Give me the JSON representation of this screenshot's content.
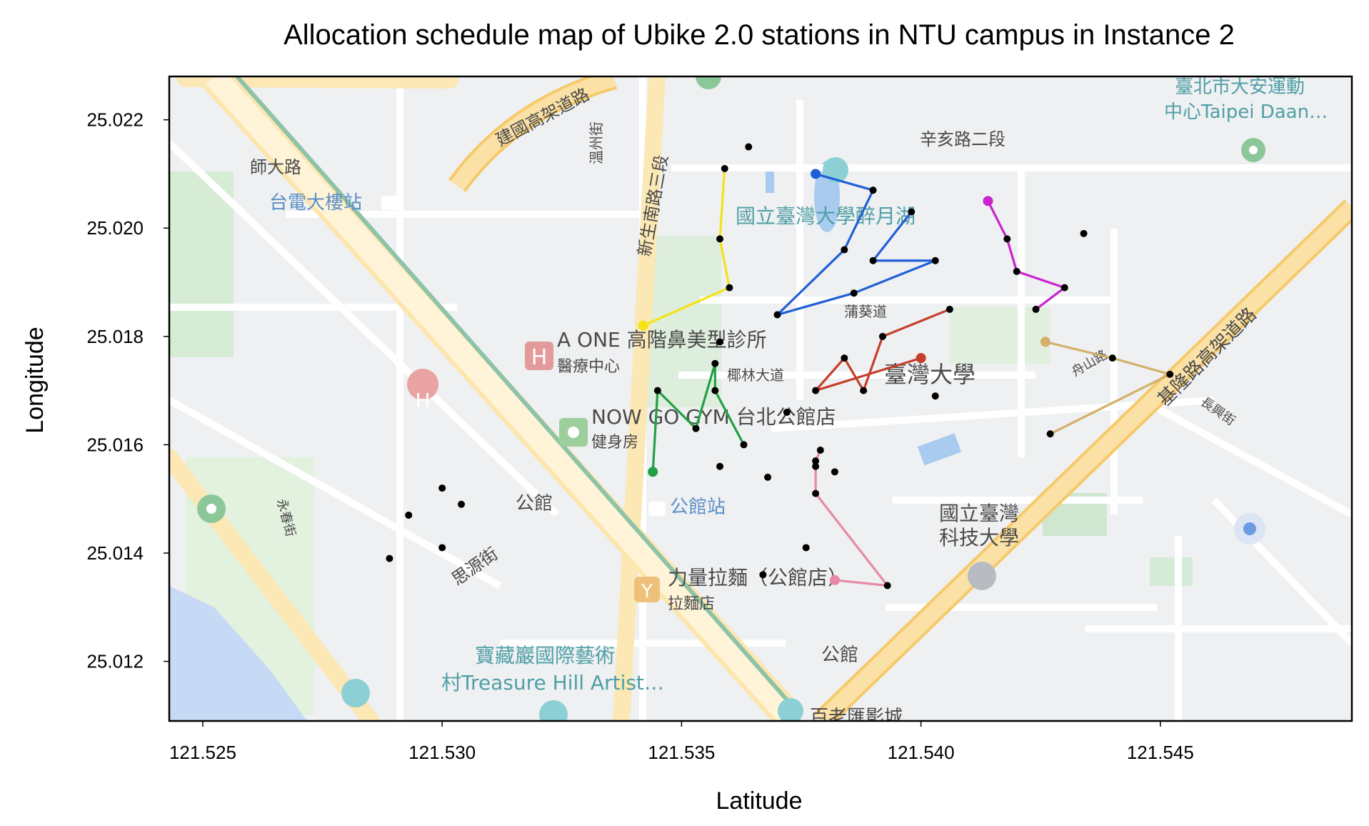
{
  "chart_data": {
    "type": "scatter",
    "title": "Allocation schedule map of Ubike 2.0 stations in NTU campus in Instance 2",
    "xlabel": "Latitude",
    "ylabel": "Longitude",
    "xlim": [
      121.5243,
      121.549
    ],
    "ylim": [
      25.0109,
      25.0228
    ],
    "x_ticks": [
      121.525,
      121.53,
      121.535,
      121.54,
      121.545
    ],
    "x_tick_labels": [
      "121.525",
      "121.530",
      "121.535",
      "121.540",
      "121.545"
    ],
    "y_ticks": [
      25.012,
      25.014,
      25.016,
      25.018,
      25.02,
      25.022
    ],
    "y_tick_labels": [
      "25.012",
      "25.014",
      "25.016",
      "25.018",
      "25.020",
      "25.022"
    ],
    "grid": false,
    "legend": false,
    "background": "map",
    "unvisited_stations": [
      [
        121.5364,
        25.0215
      ],
      [
        121.5434,
        25.0199
      ],
      [
        121.5358,
        25.0179
      ],
      [
        121.5403,
        25.0169
      ],
      [
        121.5372,
        25.0166
      ],
      [
        121.5358,
        25.0156
      ],
      [
        121.5368,
        25.0154
      ],
      [
        121.5382,
        25.0155
      ],
      [
        121.5378,
        25.0156
      ],
      [
        121.5376,
        25.0141
      ],
      [
        121.5367,
        25.0136
      ],
      [
        121.53,
        25.0152
      ],
      [
        121.5304,
        25.0149
      ],
      [
        121.5293,
        25.0147
      ],
      [
        121.53,
        25.0141
      ],
      [
        121.5289,
        25.0139
      ]
    ],
    "routes": [
      {
        "color": "#f5e216",
        "start": [
          121.5342,
          25.0182
        ],
        "points": [
          [
            121.5342,
            25.0182
          ],
          [
            121.536,
            25.0189
          ],
          [
            121.5358,
            25.0198
          ],
          [
            121.5359,
            25.0211
          ]
        ]
      },
      {
        "color": "#1f5fd6",
        "start": [
          121.5378,
          25.021
        ],
        "points": [
          [
            121.5378,
            25.021
          ],
          [
            121.539,
            25.0207
          ],
          [
            121.5384,
            25.0196
          ],
          [
            121.537,
            25.0184
          ],
          [
            121.5386,
            25.0188
          ],
          [
            121.5403,
            25.0194
          ],
          [
            121.539,
            25.0194
          ],
          [
            121.5398,
            25.0203
          ]
        ]
      },
      {
        "color": "#cc22cc",
        "start": [
          121.5414,
          25.0205
        ],
        "points": [
          [
            121.5414,
            25.0205
          ],
          [
            121.5418,
            25.0198
          ],
          [
            121.542,
            25.0192
          ],
          [
            121.543,
            25.0189
          ],
          [
            121.5424,
            25.0185
          ]
        ]
      },
      {
        "color": "#c63e2b",
        "start": [
          121.54,
          25.0176
        ],
        "points": [
          [
            121.54,
            25.0176
          ],
          [
            121.5378,
            25.017
          ],
          [
            121.5384,
            25.0176
          ],
          [
            121.5388,
            25.017
          ],
          [
            121.5392,
            25.018
          ],
          [
            121.5406,
            25.0185
          ]
        ]
      },
      {
        "color": "#22a044",
        "start": [
          121.5344,
          25.0155
        ],
        "points": [
          [
            121.5344,
            25.0155
          ],
          [
            121.5345,
            25.017
          ],
          [
            121.5353,
            25.0163
          ],
          [
            121.5357,
            25.0175
          ],
          [
            121.5357,
            25.017
          ],
          [
            121.5363,
            25.016
          ]
        ]
      },
      {
        "color": "#e68aa5",
        "start": [
          121.5382,
          25.0135
        ],
        "points": [
          [
            121.5382,
            25.0135
          ],
          [
            121.5393,
            25.0134
          ],
          [
            121.5378,
            25.0151
          ],
          [
            121.5378,
            25.0157
          ],
          [
            121.5379,
            25.0159
          ]
        ]
      },
      {
        "color": "#d4b06a",
        "start": [
          121.5426,
          25.0179
        ],
        "points": [
          [
            121.5426,
            25.0179
          ],
          [
            121.544,
            25.0176
          ],
          [
            121.5452,
            25.0173
          ],
          [
            121.5427,
            25.0162
          ]
        ]
      }
    ]
  },
  "map_labels": {
    "jianguo_expressway": "建國高架道路",
    "wenzhou_st": "溫州街",
    "xinsheng_s_rd": "新生南路三段",
    "shida_rd": "師大路",
    "taipower_station": "台電大樓站",
    "ntu_lake": "國立臺灣大學醉月湖",
    "xinhai_rd": "辛亥路二段",
    "daan_sports_1": "臺北市大安運動",
    "daan_sports_2": "中心Taipei Daan…",
    "aone_1": "A ONE 高階鼻美型診所",
    "aone_2": "醫療中心",
    "puhui_rd": "蒲葵道",
    "palm_blvd": "椰林大道",
    "ntu": "臺灣大學",
    "nowgo_1": "NOW GO GYM 台北公館店",
    "nowgo_2": "健身房",
    "gongguan_1": "公館",
    "gongguan_station": "公館站",
    "yongchun_st": "永春街",
    "siyuan_st": "思源街",
    "ntust_1": "國立臺灣",
    "ntust_2": "科技大學",
    "lillian_1": "力量拉麵（公館店）",
    "lillian_2": "拉麵店",
    "keelung_expressway": "基隆路高架道路",
    "zhoushan_rd": "舟山路",
    "changxing_st": "長興街",
    "treasure_1": "寶藏巖國際藝術",
    "treasure_2": "村Treasure Hill Artist…",
    "gongguan_2": "公館",
    "cinema": "百老匯影城"
  }
}
